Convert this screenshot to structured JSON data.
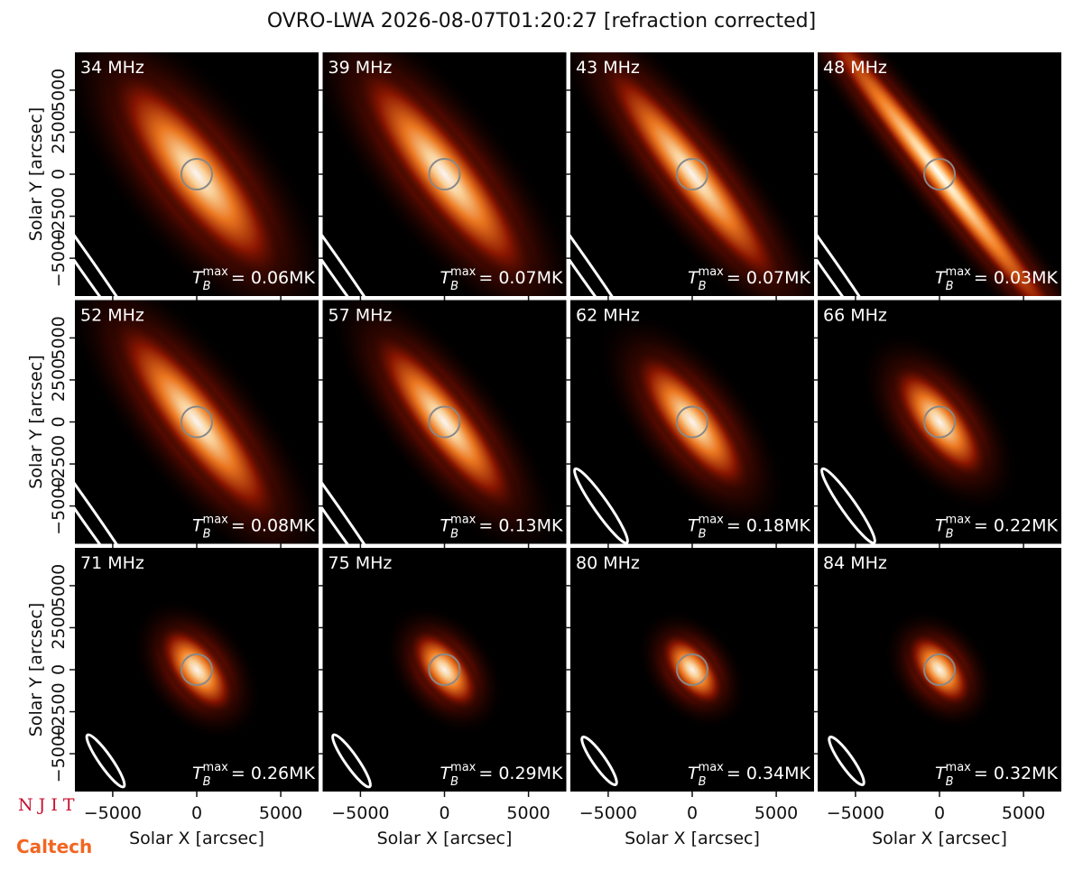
{
  "chart_data": {
    "type": "image-grid",
    "title": "OVRO-LWA 2026-08-07T01:20:27 [refraction corrected]",
    "xlabel": "Solar X [arcsec]",
    "ylabel": "Solar Y [arcsec]",
    "xlim": [
      -7250,
      7250
    ],
    "ylim": [
      -7250,
      7250
    ],
    "xticks": [
      {
        "value": -5000,
        "label": "−5000"
      },
      0,
      5000
    ],
    "yticks": [
      {
        "value": -5000,
        "label": "−5000"
      },
      {
        "value": -2500,
        "label": "−2500"
      },
      0,
      2500,
      5000
    ],
    "tb_symbol": {
      "base": "T",
      "sub": "B",
      "sup": "max"
    },
    "panels": [
      {
        "frequency": "34 MHz",
        "tb_max": "= 0.06MK"
      },
      {
        "frequency": "39 MHz",
        "tb_max": "= 0.07MK"
      },
      {
        "frequency": "43 MHz",
        "tb_max": "= 0.07MK"
      },
      {
        "frequency": "48 MHz",
        "tb_max": "= 0.03MK"
      },
      {
        "frequency": "52 MHz",
        "tb_max": "= 0.08MK"
      },
      {
        "frequency": "57 MHz",
        "tb_max": "= 0.13MK"
      },
      {
        "frequency": "62 MHz",
        "tb_max": "= 0.18MK"
      },
      {
        "frequency": "66 MHz",
        "tb_max": "= 0.22MK"
      },
      {
        "frequency": "71 MHz",
        "tb_max": "= 0.26MK"
      },
      {
        "frequency": "75 MHz",
        "tb_max": "= 0.29MK"
      },
      {
        "frequency": "80 MHz",
        "tb_max": "= 0.34MK"
      },
      {
        "frequency": "84 MHz",
        "tb_max": "= 0.32MK"
      }
    ],
    "logos": [
      "N J I T",
      "Caltech"
    ]
  }
}
